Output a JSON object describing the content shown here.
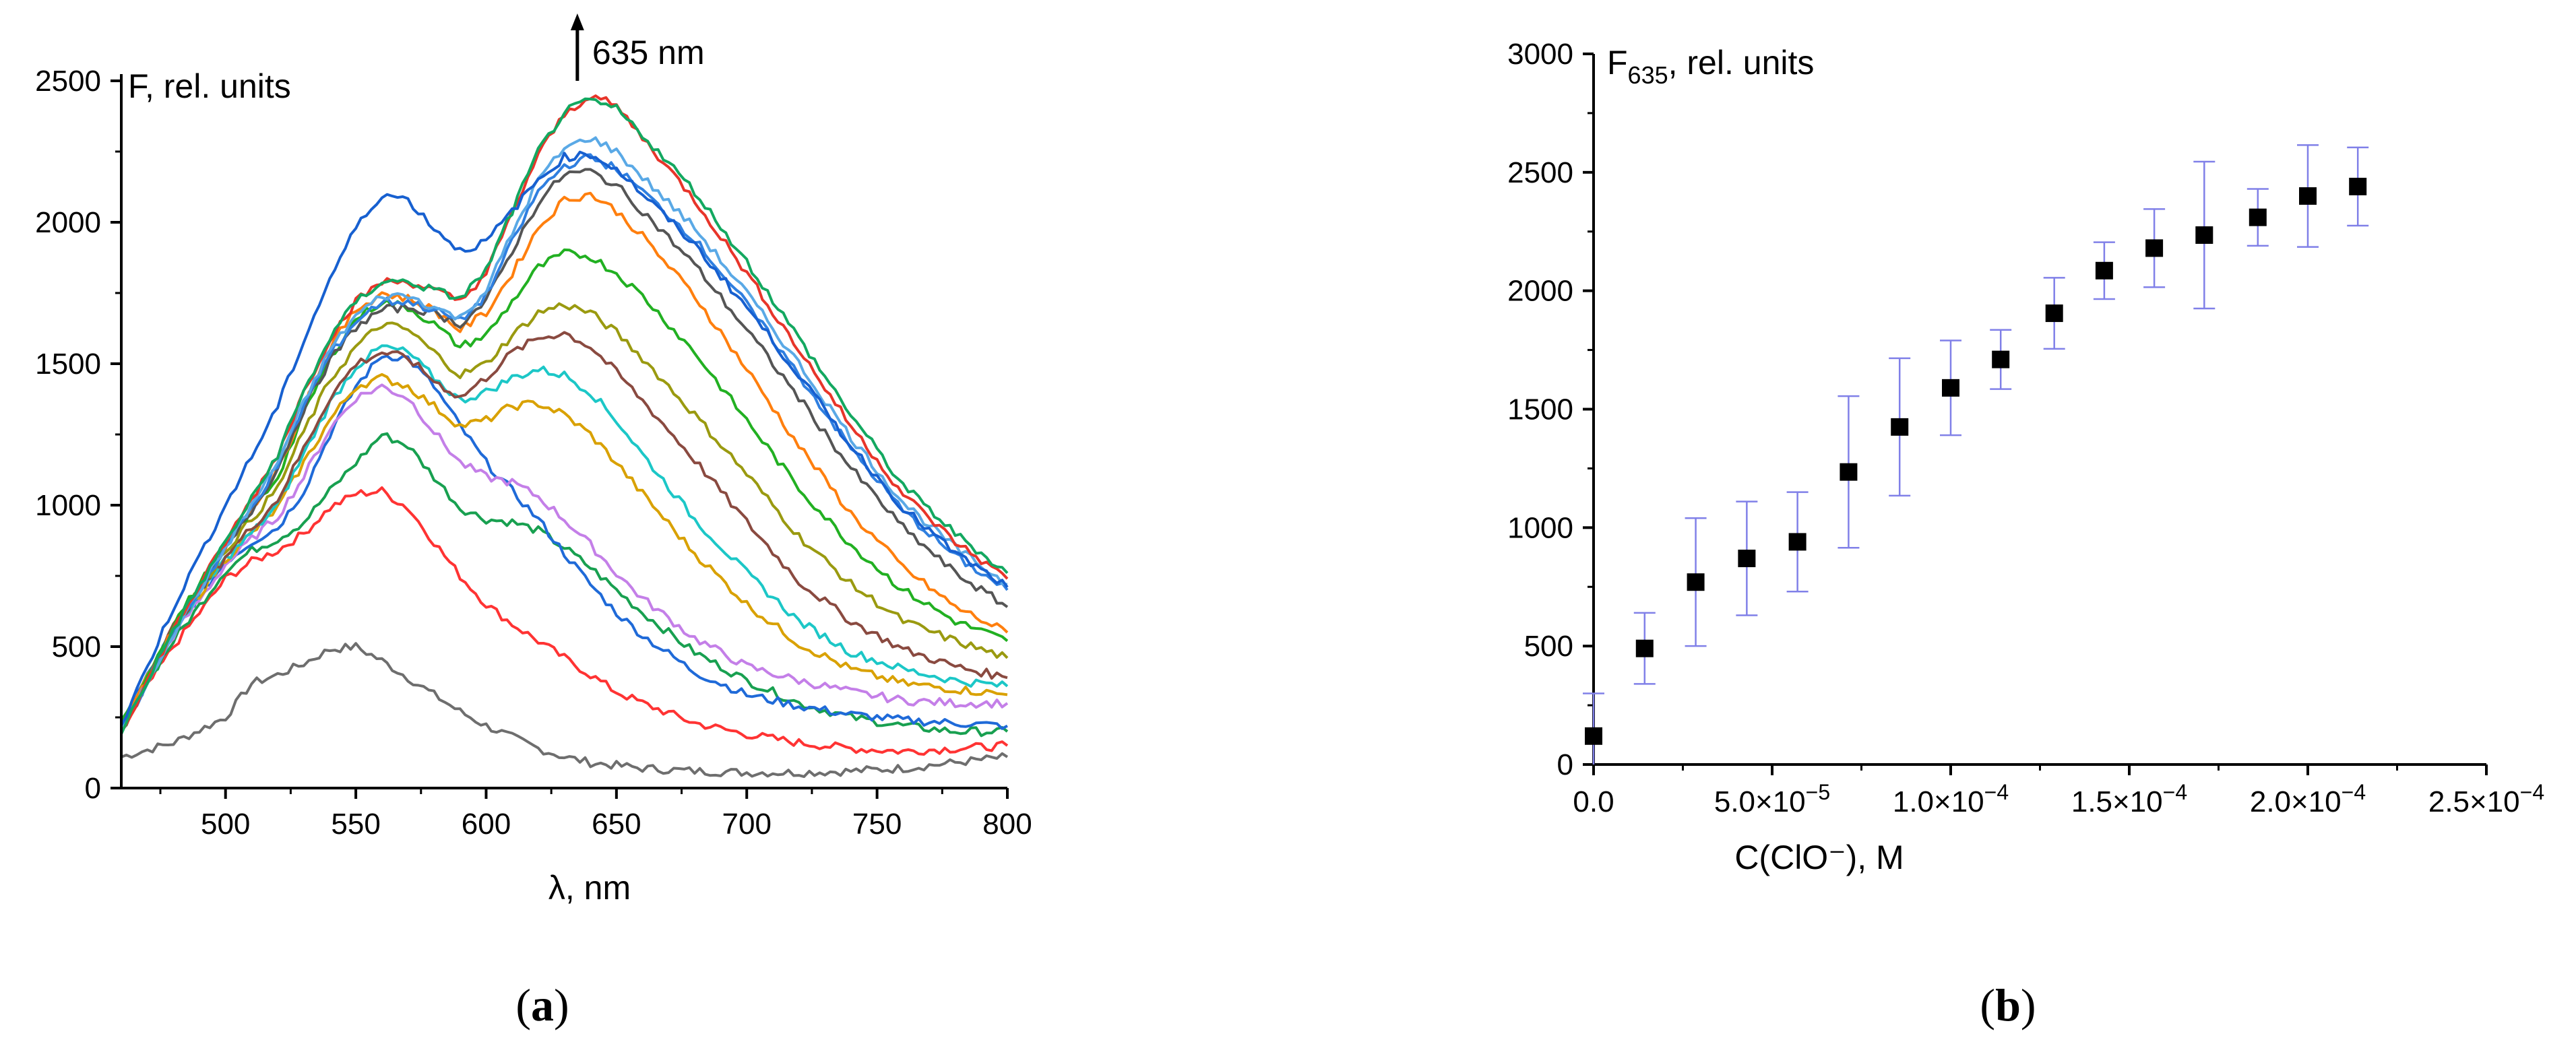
{
  "chart_data": [
    {
      "type": "line",
      "panel_label": {
        "open": "(",
        "letter": "a",
        "close": ")"
      },
      "title": "",
      "xlabel": "λ, nm",
      "ylabel": "F, rel. units",
      "xlim": [
        460,
        800
      ],
      "ylim": [
        0,
        2500
      ],
      "x_ticks": [
        500,
        550,
        600,
        650,
        700,
        750,
        800
      ],
      "y_ticks": [
        0,
        500,
        1000,
        1500,
        2000,
        2500
      ],
      "grid": false,
      "annotation": {
        "text": "635 nm",
        "x": 635,
        "direction": "up"
      },
      "x": [
        460,
        480,
        500,
        510,
        520,
        530,
        540,
        550,
        560,
        570,
        580,
        590,
        600,
        610,
        620,
        630,
        640,
        650,
        660,
        680,
        700,
        720,
        740,
        760,
        780,
        800
      ],
      "series": [
        {
          "color": "#6e6e6e",
          "values": [
            110,
            160,
            250,
            370,
            400,
            440,
            490,
            500,
            450,
            390,
            330,
            270,
            220,
            180,
            140,
            110,
            90,
            80,
            70,
            60,
            55,
            55,
            60,
            70,
            90,
            110
          ]
        },
        {
          "color": "#ff3333",
          "values": [
            220,
            500,
            740,
            800,
            840,
            900,
            990,
            1040,
            1050,
            990,
            870,
            750,
            650,
            580,
            520,
            460,
            400,
            340,
            300,
            230,
            190,
            160,
            140,
            130,
            140,
            150
          ]
        },
        {
          "color": "#18a050",
          "values": [
            230,
            520,
            770,
            840,
            880,
            940,
            1050,
            1150,
            1250,
            1210,
            1100,
            990,
            950,
            940,
            910,
            850,
            780,
            700,
            620,
            480,
            380,
            300,
            250,
            220,
            200,
            200
          ]
        },
        {
          "color": "#1f6ad8",
          "values": [
            230,
            560,
            800,
            870,
            920,
            1050,
            1250,
            1420,
            1530,
            1520,
            1420,
            1280,
            1150,
            1050,
            950,
            830,
            720,
            620,
            540,
            410,
            330,
            290,
            260,
            240,
            230,
            220
          ]
        },
        {
          "color": "#c47fe8",
          "values": [
            220,
            540,
            790,
            880,
            960,
            1100,
            1270,
            1380,
            1420,
            1380,
            1260,
            1150,
            1100,
            1080,
            1030,
            950,
            860,
            760,
            670,
            530,
            430,
            380,
            340,
            310,
            300,
            300
          ]
        },
        {
          "color": "#d9a100",
          "values": [
            220,
            560,
            810,
            900,
            990,
            1150,
            1300,
            1420,
            1450,
            1420,
            1350,
            1280,
            1300,
            1350,
            1360,
            1320,
            1250,
            1150,
            1040,
            830,
            650,
            510,
            420,
            370,
            350,
            330
          ]
        },
        {
          "color": "#1cc7c7",
          "values": [
            210,
            560,
            810,
            900,
            1000,
            1180,
            1360,
            1490,
            1560,
            1540,
            1450,
            1370,
            1400,
            1450,
            1480,
            1460,
            1400,
            1300,
            1180,
            950,
            760,
            590,
            480,
            420,
            380,
            360
          ]
        },
        {
          "color": "#8a4a40",
          "values": [
            210,
            570,
            820,
            920,
            1020,
            1200,
            1380,
            1500,
            1540,
            1520,
            1440,
            1380,
            1450,
            1540,
            1590,
            1610,
            1560,
            1470,
            1370,
            1160,
            940,
            730,
            590,
            490,
            430,
            390
          ]
        },
        {
          "color": "#9a9a10",
          "values": [
            220,
            570,
            840,
            950,
            1060,
            1260,
            1440,
            1560,
            1640,
            1620,
            1540,
            1460,
            1500,
            1600,
            1680,
            1710,
            1680,
            1610,
            1520,
            1320,
            1110,
            890,
            720,
            590,
            520,
            460
          ]
        },
        {
          "color": "#22b022",
          "values": [
            220,
            580,
            860,
            980,
            1100,
            1320,
            1520,
            1660,
            1720,
            1700,
            1640,
            1560,
            1600,
            1720,
            1840,
            1890,
            1880,
            1820,
            1740,
            1540,
            1300,
            1060,
            860,
            700,
            590,
            520
          ]
        },
        {
          "color": "#ff7f0e",
          "values": [
            210,
            560,
            860,
            990,
            1120,
            1350,
            1560,
            1690,
            1750,
            1730,
            1690,
            1620,
            1680,
            1820,
            1980,
            2080,
            2100,
            2040,
            1950,
            1740,
            1480,
            1210,
            970,
            780,
            640,
            550
          ]
        },
        {
          "color": "#555555",
          "values": [
            200,
            550,
            840,
            980,
            1130,
            1340,
            1510,
            1630,
            1690,
            1700,
            1680,
            1640,
            1720,
            1900,
            2070,
            2170,
            2180,
            2130,
            2040,
            1850,
            1620,
            1380,
            1130,
            920,
            760,
            640
          ]
        },
        {
          "color": "#2f7fe0",
          "values": [
            200,
            550,
            850,
            990,
            1140,
            1350,
            1530,
            1650,
            1720,
            1720,
            1690,
            1650,
            1740,
            1930,
            2110,
            2200,
            2230,
            2190,
            2110,
            1940,
            1710,
            1460,
            1200,
            980,
            820,
            700
          ]
        },
        {
          "color": "#5aa9e6",
          "values": [
            200,
            550,
            850,
            1000,
            1150,
            1360,
            1550,
            1670,
            1740,
            1740,
            1700,
            1660,
            1760,
            1960,
            2150,
            2260,
            2300,
            2250,
            2160,
            1980,
            1750,
            1500,
            1240,
            1010,
            850,
            720
          ]
        },
        {
          "color": "#e8352a",
          "values": [
            200,
            560,
            870,
            1020,
            1180,
            1400,
            1590,
            1720,
            1790,
            1790,
            1760,
            1720,
            1820,
            2030,
            2240,
            2380,
            2450,
            2410,
            2300,
            2080,
            1820,
            1550,
            1280,
            1040,
            870,
            740
          ]
        },
        {
          "color": "#13a860",
          "values": [
            200,
            560,
            870,
            1020,
            1180,
            1400,
            1590,
            1720,
            1790,
            1790,
            1760,
            1730,
            1830,
            2040,
            2250,
            2390,
            2430,
            2400,
            2310,
            2110,
            1860,
            1590,
            1320,
            1070,
            900,
            760
          ]
        },
        {
          "color": "#1760d0",
          "values": [
            220,
            640,
            1000,
            1170,
            1350,
            1580,
            1800,
            1980,
            2100,
            2080,
            1980,
            1900,
            1930,
            2040,
            2150,
            2230,
            2240,
            2190,
            2100,
            1920,
            1700,
            1460,
            1210,
            990,
            830,
            710
          ]
        }
      ]
    },
    {
      "type": "scatter",
      "panel_label": {
        "open": "(",
        "letter": "b",
        "close": ")"
      },
      "title": "",
      "xlabel": "C(ClO⁻), M",
      "ylabel": {
        "base": "F",
        "sub": "635",
        "rest": ", rel. units"
      },
      "xlim": [
        0,
        0.00025
      ],
      "ylim": [
        0,
        3000
      ],
      "x_ticks": [
        0,
        5e-05,
        0.0001,
        0.00015,
        0.0002,
        0.00025
      ],
      "x_tick_labels": [
        {
          "mantissa": "0.0",
          "exponent": ""
        },
        {
          "mantissa": "5.0×10",
          "exponent": "−5"
        },
        {
          "mantissa": "1.0×10",
          "exponent": "−4"
        },
        {
          "mantissa": "1.5×10",
          "exponent": "−4"
        },
        {
          "mantissa": "2.0×10",
          "exponent": "−4"
        },
        {
          "mantissa": "2.5×10",
          "exponent": "−4"
        }
      ],
      "y_ticks": [
        0,
        500,
        1000,
        1500,
        2000,
        2500,
        3000
      ],
      "grid": false,
      "marker_color": "#000000",
      "errorbar_color": "#8080e8",
      "points": [
        {
          "x": 0.0,
          "y": 120,
          "err": 180
        },
        {
          "x": 1.43e-05,
          "y": 490,
          "err": 150
        },
        {
          "x": 2.86e-05,
          "y": 770,
          "err": 270
        },
        {
          "x": 4.29e-05,
          "y": 870,
          "err": 240
        },
        {
          "x": 5.71e-05,
          "y": 940,
          "err": 210
        },
        {
          "x": 7.14e-05,
          "y": 1235,
          "err": 320
        },
        {
          "x": 8.57e-05,
          "y": 1425,
          "err": 290
        },
        {
          "x": 0.0001,
          "y": 1590,
          "err": 200
        },
        {
          "x": 0.000114,
          "y": 1710,
          "err": 125
        },
        {
          "x": 0.000129,
          "y": 1905,
          "err": 150
        },
        {
          "x": 0.000143,
          "y": 2085,
          "err": 120
        },
        {
          "x": 0.000157,
          "y": 2180,
          "err": 165
        },
        {
          "x": 0.000171,
          "y": 2235,
          "err": 310
        },
        {
          "x": 0.000186,
          "y": 2310,
          "err": 120
        },
        {
          "x": 0.0002,
          "y": 2400,
          "err": 215
        },
        {
          "x": 0.000214,
          "y": 2440,
          "err": 165
        }
      ]
    }
  ]
}
